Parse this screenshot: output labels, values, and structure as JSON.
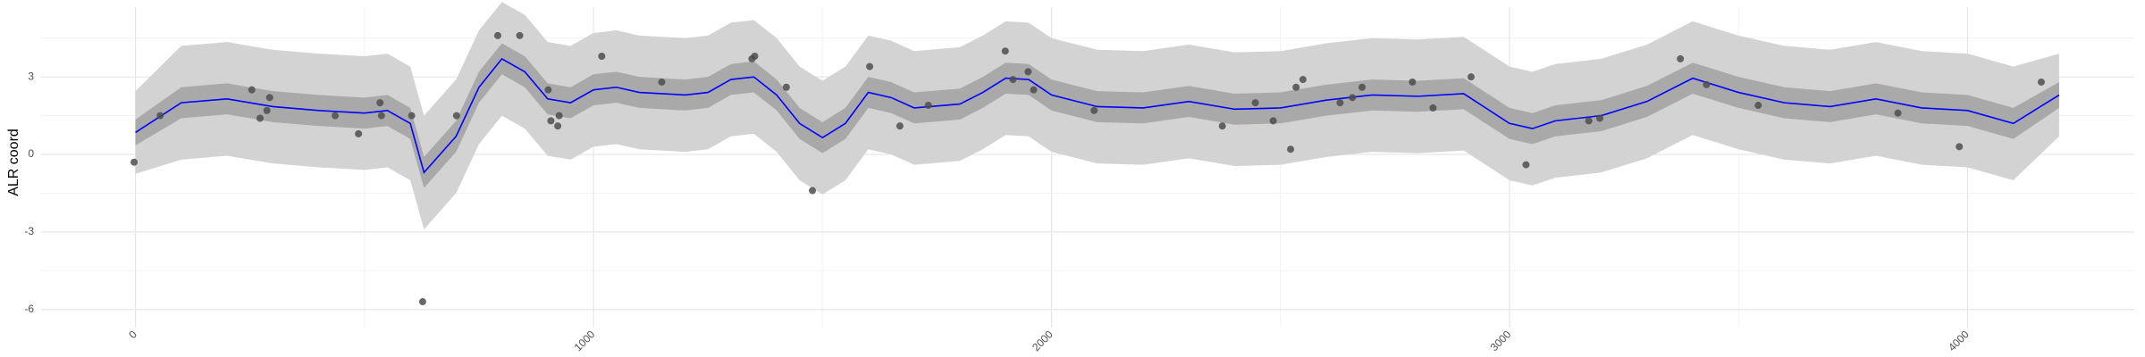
{
  "chart_data": {
    "type": "scatter",
    "ylabel": "ALR coord",
    "xlim": [
      -206,
      4364
    ],
    "ylim": [
      -6.7,
      5.7
    ],
    "xticks": [
      0,
      1000,
      2000,
      3000,
      4000
    ],
    "yticks": [
      -6,
      -3,
      0,
      3
    ],
    "grid": true,
    "minor_grid": true,
    "point_color": "#4d4d4d",
    "line_color": "#0000ff",
    "inner_band_color": "#a9a9a9",
    "outer_band_color": "#d3d3d3",
    "points": {
      "x": [
        -3,
        54,
        254,
        272,
        287,
        293,
        436,
        487,
        534,
        537,
        603,
        627,
        701,
        791,
        839,
        901,
        907,
        922,
        925,
        1018,
        1149,
        1346,
        1352,
        1421,
        1478,
        1603,
        1669,
        1731,
        1899,
        1916,
        1949,
        1961,
        2093,
        2373,
        2445,
        2484,
        2522,
        2534,
        2549,
        2630,
        2657,
        2678,
        2788,
        2833,
        2916,
        3036,
        3173,
        3197,
        3373,
        3430,
        3543,
        3848,
        3982,
        4161
      ],
      "y": [
        -0.3,
        1.5,
        2.5,
        1.4,
        1.7,
        2.2,
        1.5,
        0.8,
        2.0,
        1.5,
        1.5,
        -5.7,
        1.5,
        4.6,
        4.6,
        2.5,
        1.3,
        1.1,
        1.5,
        3.8,
        2.8,
        3.7,
        3.8,
        2.6,
        -1.4,
        3.4,
        1.1,
        1.9,
        4.0,
        2.9,
        3.2,
        2.5,
        1.7,
        1.1,
        2.0,
        1.3,
        0.2,
        2.6,
        2.9,
        2.0,
        2.2,
        2.6,
        2.8,
        1.8,
        3.0,
        -0.4,
        1.3,
        1.4,
        3.7,
        2.7,
        1.9,
        1.6,
        0.3,
        2.8
      ]
    },
    "smooth": {
      "x": [
        0,
        100,
        200,
        300,
        400,
        500,
        550,
        600,
        630,
        700,
        750,
        800,
        850,
        900,
        950,
        1000,
        1050,
        1100,
        1200,
        1250,
        1300,
        1350,
        1400,
        1450,
        1500,
        1550,
        1600,
        1650,
        1700,
        1800,
        1850,
        1900,
        1950,
        2000,
        2100,
        2200,
        2300,
        2400,
        2500,
        2600,
        2700,
        2800,
        2900,
        3000,
        3050,
        3100,
        3200,
        3300,
        3400,
        3500,
        3600,
        3700,
        3800,
        3900,
        4000,
        4100,
        4200
      ],
      "fit": [
        0.85,
        2.0,
        2.15,
        1.85,
        1.7,
        1.6,
        1.7,
        1.2,
        -0.7,
        0.7,
        2.6,
        3.7,
        3.2,
        2.15,
        2.0,
        2.5,
        2.6,
        2.4,
        2.3,
        2.4,
        2.9,
        3.0,
        2.3,
        1.2,
        0.65,
        1.2,
        2.4,
        2.2,
        1.8,
        1.95,
        2.4,
        2.95,
        2.9,
        2.3,
        1.85,
        1.8,
        2.05,
        1.75,
        1.8,
        2.1,
        2.3,
        2.25,
        2.35,
        1.2,
        1.0,
        1.3,
        1.5,
        2.05,
        2.95,
        2.4,
        2.0,
        1.85,
        2.15,
        1.8,
        1.7,
        1.2,
        2.3
      ],
      "inner_lower": [
        0.35,
        1.4,
        1.55,
        1.25,
        1.1,
        1.0,
        1.1,
        0.6,
        -1.3,
        0.1,
        2.0,
        3.1,
        2.6,
        1.55,
        1.4,
        1.9,
        2.0,
        1.8,
        1.7,
        1.8,
        2.3,
        2.4,
        1.7,
        0.6,
        0.05,
        0.6,
        1.8,
        1.6,
        1.2,
        1.35,
        1.8,
        2.35,
        2.3,
        1.7,
        1.25,
        1.2,
        1.45,
        1.15,
        1.2,
        1.5,
        1.7,
        1.65,
        1.75,
        0.6,
        0.4,
        0.7,
        0.9,
        1.45,
        2.35,
        1.8,
        1.4,
        1.25,
        1.55,
        1.2,
        1.1,
        0.6,
        1.8
      ],
      "inner_upper": [
        1.35,
        2.6,
        2.75,
        2.45,
        2.3,
        2.2,
        2.3,
        1.8,
        -0.1,
        1.3,
        3.2,
        4.3,
        3.8,
        2.75,
        2.6,
        3.1,
        3.2,
        3.0,
        2.9,
        3.0,
        3.5,
        3.6,
        2.9,
        1.8,
        1.25,
        1.8,
        3.0,
        2.8,
        2.4,
        2.55,
        3.0,
        3.55,
        3.5,
        2.9,
        2.45,
        2.4,
        2.65,
        2.35,
        2.4,
        2.7,
        2.9,
        2.85,
        2.95,
        1.8,
        1.6,
        1.9,
        2.1,
        2.65,
        3.55,
        3.0,
        2.6,
        2.45,
        2.75,
        2.4,
        2.3,
        1.8,
        2.8
      ],
      "outer_lower": [
        -0.75,
        -0.2,
        -0.05,
        -0.35,
        -0.5,
        -0.6,
        -0.5,
        -1.0,
        -2.9,
        -1.5,
        0.4,
        1.5,
        1.0,
        -0.05,
        -0.2,
        0.3,
        0.4,
        0.2,
        0.1,
        0.2,
        0.7,
        0.8,
        0.1,
        -1.0,
        -1.55,
        -1.0,
        0.2,
        0.0,
        -0.4,
        -0.25,
        0.2,
        0.75,
        0.7,
        0.1,
        -0.35,
        -0.4,
        -0.15,
        -0.45,
        -0.4,
        -0.1,
        0.1,
        0.05,
        0.15,
        -1.0,
        -1.2,
        -0.9,
        -0.7,
        -0.15,
        0.75,
        0.2,
        -0.2,
        -0.35,
        -0.05,
        -0.4,
        -0.5,
        -1.0,
        0.7
      ],
      "outer_upper": [
        2.45,
        4.2,
        4.35,
        4.05,
        3.9,
        3.8,
        3.9,
        3.4,
        1.5,
        2.9,
        4.8,
        5.9,
        5.4,
        4.35,
        4.2,
        4.7,
        4.8,
        4.6,
        4.5,
        4.6,
        5.1,
        5.2,
        4.5,
        3.4,
        2.85,
        3.4,
        4.6,
        4.4,
        4.0,
        4.15,
        4.6,
        5.15,
        5.1,
        4.5,
        4.05,
        4.0,
        4.25,
        3.95,
        4.0,
        4.3,
        4.5,
        4.45,
        4.55,
        3.4,
        3.2,
        3.5,
        3.7,
        4.25,
        5.15,
        4.6,
        4.2,
        4.05,
        4.35,
        4.0,
        3.9,
        3.4,
        3.9
      ]
    }
  }
}
